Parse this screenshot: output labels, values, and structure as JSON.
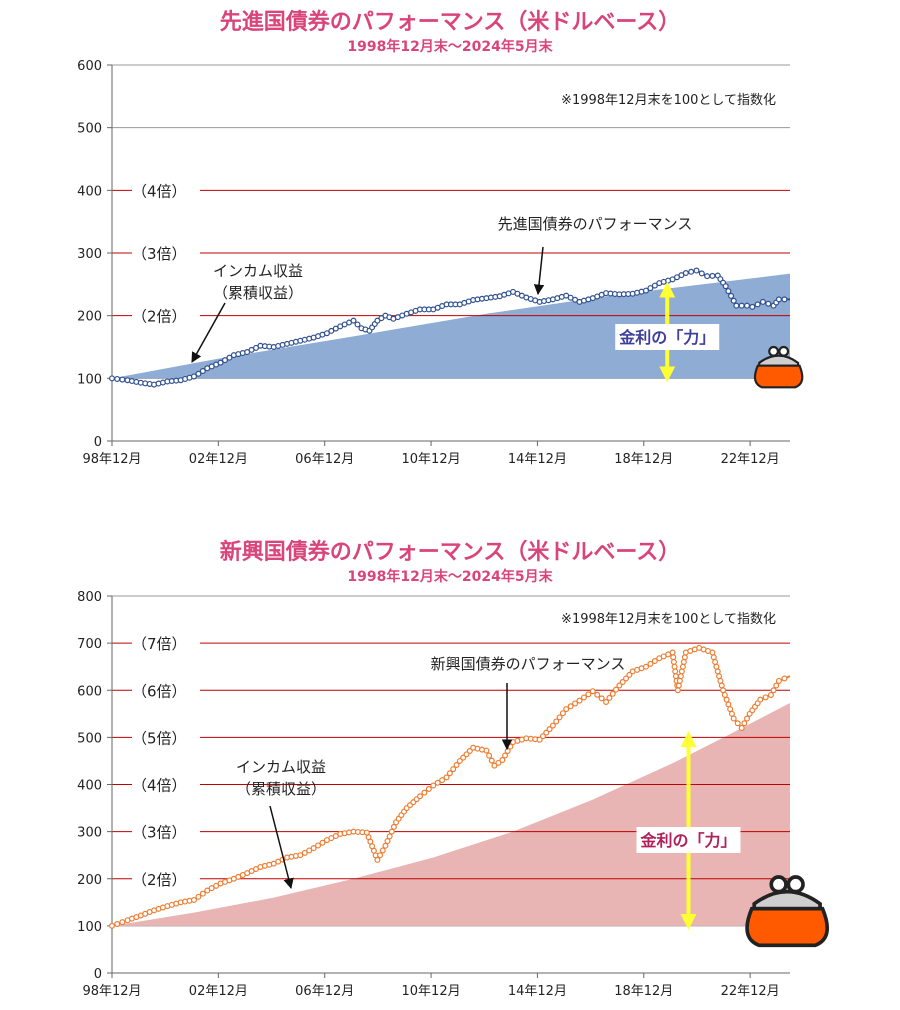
{
  "chart_data": [
    {
      "type": "area",
      "title": "先進国債券のパフォーマンス（米ドルベース）",
      "subtitle": "1998年12月末～2024年5月末",
      "note": "※1998年12月末を100として指数化",
      "ylim": [
        0,
        600
      ],
      "yticks": [
        "0",
        "100",
        "200",
        "300",
        "400",
        "500",
        "600"
      ],
      "x_range": [
        1998.917,
        2024.417
      ],
      "xticks": [
        {
          "label": "98年12月",
          "x": 1998.917
        },
        {
          "label": "02年12月",
          "x": 2002.917
        },
        {
          "label": "06年12月",
          "x": 2006.917
        },
        {
          "label": "10年12月",
          "x": 2010.917
        },
        {
          "label": "14年12月",
          "x": 2014.917
        },
        {
          "label": "18年12月",
          "x": 2018.917
        },
        {
          "label": "22年12月",
          "x": 2022.917
        }
      ],
      "multiples": [
        {
          "label": "（2倍）",
          "value": 200
        },
        {
          "label": "（3倍）",
          "value": 300
        },
        {
          "label": "（4倍）",
          "value": 400
        }
      ],
      "series": [
        {
          "name": "先進国債券のパフォーマンス",
          "role": "line",
          "color": "#2f4f8f",
          "x": [
            1998.917,
            1999.5,
            2000.0,
            2000.5,
            2001.0,
            2001.5,
            2002.0,
            2002.5,
            2003.0,
            2003.5,
            2004.0,
            2004.5,
            2005.0,
            2005.5,
            2006.0,
            2006.5,
            2007.0,
            2007.5,
            2008.0,
            2008.3,
            2008.6,
            2008.9,
            2009.2,
            2009.5,
            2010.0,
            2010.5,
            2011.0,
            2011.5,
            2012.0,
            2012.5,
            2013.0,
            2013.5,
            2014.0,
            2014.5,
            2015.0,
            2015.5,
            2016.0,
            2016.5,
            2017.0,
            2017.5,
            2018.0,
            2018.5,
            2019.0,
            2019.5,
            2020.0,
            2020.5,
            2020.9,
            2021.3,
            2021.7,
            2022.0,
            2022.4,
            2022.8,
            2023.0,
            2023.4,
            2023.8,
            2024.0,
            2024.417
          ],
          "y": [
            100,
            97,
            93,
            90,
            95,
            97,
            103,
            116,
            125,
            137,
            142,
            152,
            150,
            155,
            160,
            165,
            172,
            183,
            192,
            180,
            176,
            192,
            200,
            195,
            203,
            210,
            210,
            218,
            218,
            225,
            228,
            231,
            238,
            229,
            222,
            226,
            232,
            222,
            228,
            236,
            234,
            235,
            240,
            252,
            258,
            268,
            272,
            263,
            264,
            247,
            216,
            216,
            214,
            222,
            216,
            226,
            226
          ]
        },
        {
          "name": "インカム収益（累積収益）",
          "role": "area",
          "color": "#8eacd4",
          "x": [
            1998.917,
            2003.0,
            2008.0,
            2013.0,
            2018.0,
            2024.417
          ],
          "y": [
            100,
            132,
            167,
            203,
            234,
            267
          ]
        }
      ],
      "annotations": {
        "line_label": "先進国債券のパフォーマンス",
        "income_label_1": "インカム収益",
        "income_label_2": "（累積収益）",
        "power_label": "金利の「力」",
        "power_arrow_x": 2019.8
      }
    },
    {
      "type": "area",
      "title": "新興国債券のパフォーマンス（米ドルベース）",
      "subtitle": "1998年12月末～2024年5月末",
      "note": "※1998年12月末を100として指数化",
      "ylim": [
        0,
        800
      ],
      "yticks": [
        "0",
        "100",
        "200",
        "300",
        "400",
        "500",
        "600",
        "700",
        "800"
      ],
      "x_range": [
        1998.917,
        2024.417
      ],
      "xticks": [
        {
          "label": "98年12月",
          "x": 1998.917
        },
        {
          "label": "02年12月",
          "x": 2002.917
        },
        {
          "label": "06年12月",
          "x": 2006.917
        },
        {
          "label": "10年12月",
          "x": 2010.917
        },
        {
          "label": "14年12月",
          "x": 2014.917
        },
        {
          "label": "18年12月",
          "x": 2018.917
        },
        {
          "label": "22年12月",
          "x": 2022.917
        }
      ],
      "multiples": [
        {
          "label": "（2倍）",
          "value": 200
        },
        {
          "label": "（3倍）",
          "value": 300
        },
        {
          "label": "（4倍）",
          "value": 400
        },
        {
          "label": "（5倍）",
          "value": 500
        },
        {
          "label": "（6倍）",
          "value": 600
        },
        {
          "label": "（7倍）",
          "value": 700
        }
      ],
      "series": [
        {
          "name": "新興国債券のパフォーマンス",
          "role": "line",
          "color": "#ed7d31",
          "x": [
            1998.917,
            1999.5,
            2000.0,
            2000.5,
            2001.0,
            2001.5,
            2002.0,
            2002.5,
            2003.0,
            2003.5,
            2004.0,
            2004.5,
            2005.0,
            2005.5,
            2006.0,
            2006.5,
            2007.0,
            2007.5,
            2008.0,
            2008.5,
            2008.9,
            2009.2,
            2009.6,
            2010.0,
            2010.5,
            2011.0,
            2011.5,
            2012.0,
            2012.5,
            2013.0,
            2013.3,
            2013.6,
            2014.0,
            2014.5,
            2015.0,
            2015.5,
            2016.0,
            2016.5,
            2017.0,
            2017.5,
            2018.0,
            2018.5,
            2019.0,
            2019.5,
            2020.0,
            2020.2,
            2020.5,
            2021.0,
            2021.5,
            2021.9,
            2022.3,
            2022.6,
            2022.9,
            2023.3,
            2023.7,
            2024.0,
            2024.417
          ],
          "y": [
            100,
            112,
            122,
            133,
            142,
            150,
            155,
            175,
            190,
            200,
            212,
            225,
            232,
            245,
            250,
            265,
            282,
            295,
            300,
            298,
            240,
            270,
            320,
            350,
            375,
            398,
            415,
            450,
            478,
            472,
            440,
            452,
            490,
            498,
            495,
            525,
            560,
            578,
            598,
            575,
            610,
            640,
            650,
            668,
            680,
            600,
            680,
            690,
            680,
            600,
            540,
            520,
            550,
            580,
            590,
            620,
            630
          ]
        },
        {
          "name": "インカム収益（累積収益）",
          "role": "area",
          "color": "#e8b4b4",
          "x": [
            1998.917,
            2002.0,
            2005.0,
            2008.0,
            2011.0,
            2014.0,
            2017.0,
            2020.0,
            2022.0,
            2024.417
          ],
          "y": [
            100,
            128,
            160,
            200,
            245,
            300,
            368,
            445,
            502,
            573
          ]
        }
      ],
      "annotations": {
        "line_label": "新興国債券のパフォーマンス",
        "income_label_1": "インカム収益",
        "income_label_2": "（累積収益）",
        "power_label": "金利の「力」",
        "power_arrow_x": 2020.6
      }
    }
  ],
  "colors": {
    "title": "#d9457a",
    "gridline": "#999999",
    "multiple_line": "#c00000",
    "power_arrow": "#ffff33",
    "power_text_1": "#3f3fa0",
    "power_text_2": "#b0205a",
    "purse": "#ff5a00"
  },
  "icons": [
    "coin-purse-icon",
    "coin-purse-icon"
  ]
}
